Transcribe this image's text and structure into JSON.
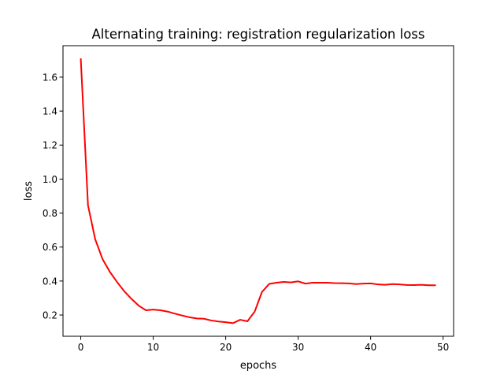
{
  "chart_data": {
    "type": "line",
    "title": "Alternating training: registration regularization loss",
    "xlabel": "epochs",
    "ylabel": "loss",
    "xlim": [
      -2.45,
      51.45
    ],
    "ylim": [
      0.075,
      1.785
    ],
    "xticks": [
      0,
      10,
      20,
      30,
      40,
      50
    ],
    "yticks": [
      0.2,
      0.4,
      0.6,
      0.8,
      1.0,
      1.2,
      1.4,
      1.6
    ],
    "xtick_labels": [
      "0",
      "10",
      "20",
      "30",
      "40",
      "50"
    ],
    "ytick_labels": [
      "0.2",
      "0.4",
      "0.6",
      "0.8",
      "1.0",
      "1.2",
      "1.4",
      "1.6"
    ],
    "grid": false,
    "line_color": "#ff0000",
    "series": [
      {
        "x": [
          0,
          1,
          2,
          3,
          4,
          5,
          6,
          7,
          8,
          9,
          10,
          11,
          12,
          13,
          14,
          15,
          16,
          17,
          18,
          19,
          20,
          21,
          22,
          23,
          24,
          25,
          26,
          27,
          28,
          29,
          30,
          31,
          32,
          33,
          34,
          35,
          36,
          37,
          38,
          39,
          40,
          41,
          42,
          43,
          44,
          45,
          46,
          47,
          48,
          49
        ],
        "values": [
          1.71,
          0.845,
          0.645,
          0.53,
          0.455,
          0.395,
          0.34,
          0.295,
          0.255,
          0.228,
          0.232,
          0.228,
          0.22,
          0.208,
          0.197,
          0.187,
          0.18,
          0.178,
          0.168,
          0.162,
          0.158,
          0.152,
          0.172,
          0.163,
          0.22,
          0.335,
          0.383,
          0.39,
          0.395,
          0.392,
          0.398,
          0.385,
          0.39,
          0.39,
          0.39,
          0.388,
          0.387,
          0.386,
          0.382,
          0.385,
          0.386,
          0.38,
          0.378,
          0.382,
          0.38,
          0.377,
          0.376,
          0.378,
          0.375,
          0.375
        ]
      }
    ]
  }
}
